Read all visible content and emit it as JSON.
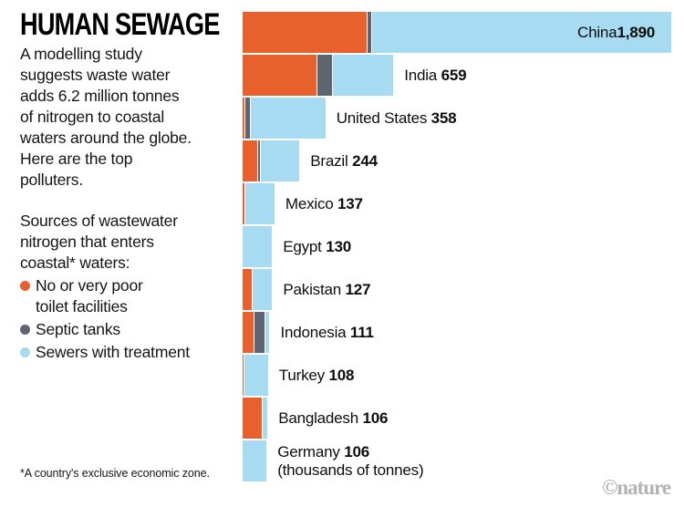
{
  "title": "HUMAN SEWAGE",
  "intro": "A modelling study\nsuggests waste water\nadds 6.2 million tonnes\nof nitrogen to coastal\nwaters around the globe.\nHere are the top\npolluters.",
  "legend": {
    "heading": "Sources of wastewater\nnitrogen that enters\ncoastal* waters:",
    "items": [
      {
        "label": "No or very poor\ntoilet facilities",
        "color": "#E8612C"
      },
      {
        "label": "Septic tanks",
        "color": "#5C6570"
      },
      {
        "label": "Sewers with treatment",
        "color": "#A7DBF2"
      }
    ]
  },
  "footnote": "*A country's exclusive economic zone.",
  "credit": "©nature",
  "colors": {
    "orange": "#E8612C",
    "gray": "#5C6570",
    "blue": "#A7DBF2",
    "text": "#141414",
    "credit_gray": "#b3b3b3"
  },
  "chart_data": {
    "type": "bar",
    "orientation": "horizontal",
    "stacked": true,
    "unit": "thousands of tonnes",
    "unit_note": "(thousands of tonnes)",
    "xlim": [
      0,
      1890
    ],
    "legend_position": "left",
    "grid": false,
    "categories": [
      "China",
      "India",
      "United States",
      "Brazil",
      "Mexico",
      "Egypt",
      "Pakistan",
      "Indonesia",
      "Turkey",
      "Bangladesh",
      "Germany"
    ],
    "totals": [
      1890,
      659,
      358,
      244,
      137,
      130,
      127,
      111,
      108,
      106,
      106
    ],
    "total_labels": [
      "1,890",
      "659",
      "358",
      "244",
      "137",
      "130",
      "127",
      "111",
      "108",
      "106",
      "106"
    ],
    "series": [
      {
        "name": "No or very poor toilet facilities",
        "color": "#E8612C",
        "values": [
          548,
          327,
          8,
          66,
          9,
          0,
          40,
          48,
          4,
          85,
          0
        ]
      },
      {
        "name": "Septic tanks",
        "color": "#5C6570",
        "values": [
          16,
          65,
          18,
          9,
          0,
          0,
          0,
          44,
          0,
          0,
          0
        ]
      },
      {
        "name": "Sewers with treatment",
        "color": "#A7DBF2",
        "values": [
          1326,
          267,
          332,
          169,
          128,
          130,
          87,
          19,
          104,
          21,
          106
        ]
      }
    ]
  }
}
